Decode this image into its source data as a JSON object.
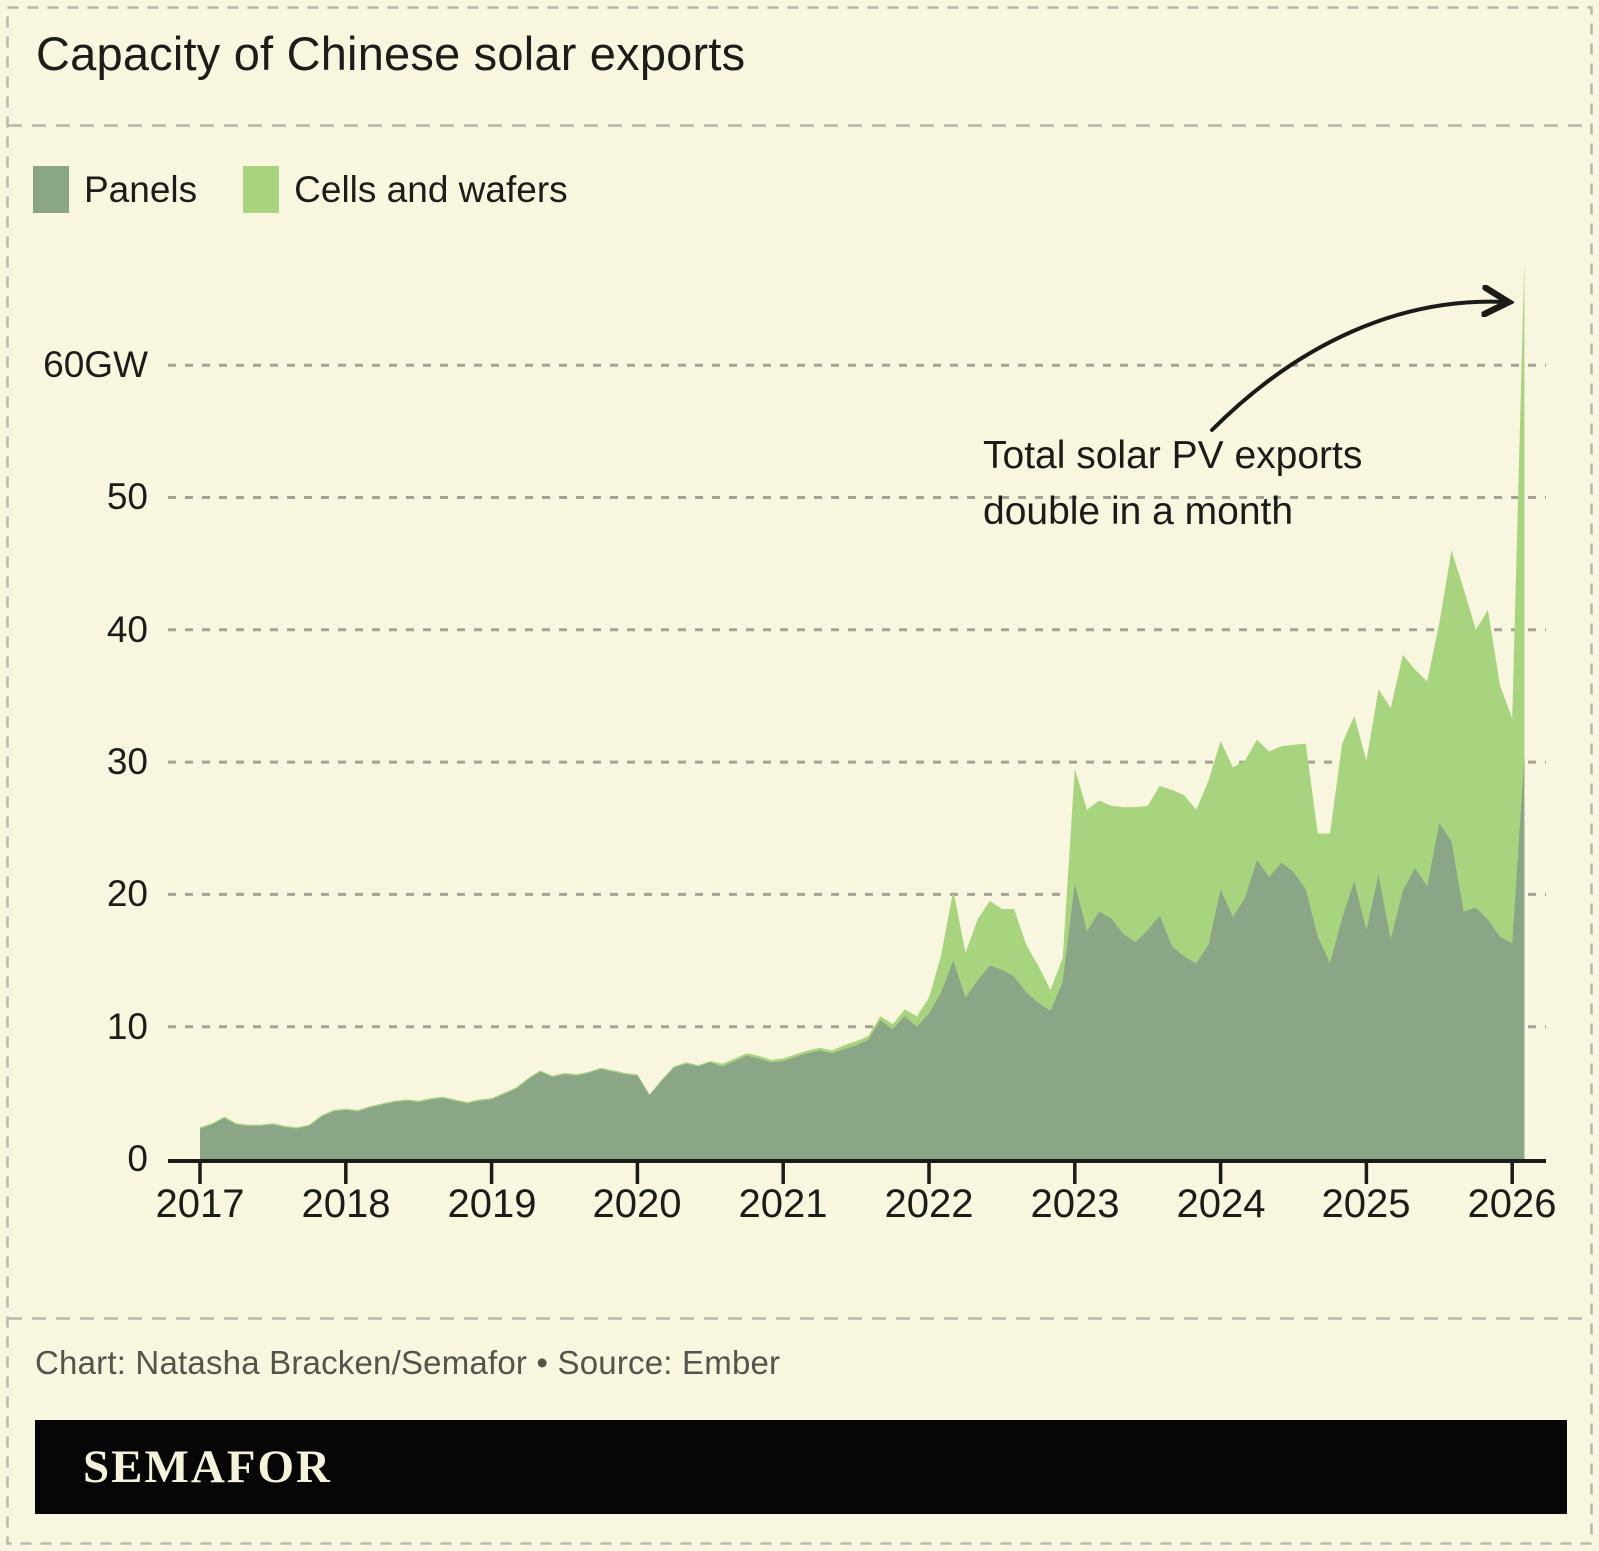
{
  "title": "Capacity of Chinese solar exports",
  "legend": [
    {
      "label": "Panels",
      "color": "#8ba687"
    },
    {
      "label": "Cells and wafers",
      "color": "#a8d47f"
    }
  ],
  "annotation": {
    "line1": "Total solar PV exports",
    "line2": "double in a month"
  },
  "credit": "Chart: Natasha Bracken/Semafor • Source: Ember",
  "logo": "SEMAFOR",
  "colors": {
    "background": "#f9f6e0",
    "panels": "#8ba687",
    "cells_and_wafers": "#a8d47f",
    "grid": "#a3a295",
    "separator": "#b8b6a9",
    "border_dash": "#b8b6a9",
    "axis": "#1b1b18",
    "arrow": "#1b1b18",
    "credit_text": "#55544b",
    "brand_bar": "#060606",
    "brand_text": "#f5f1da"
  },
  "chart_data": {
    "type": "area",
    "stacked": true,
    "unit": "GW",
    "frequency": "monthly",
    "x_start": "2017-01",
    "x_end": "2026-02",
    "ylim": [
      0,
      70
    ],
    "grid": true,
    "legend_position": "top-left",
    "x_tick_labels": [
      "2017",
      "2018",
      "2019",
      "2020",
      "2021",
      "2022",
      "2023",
      "2024",
      "2025",
      "2026"
    ],
    "y_tick_labels": [
      "60GW",
      "50",
      "40",
      "30",
      "20",
      "10",
      "0"
    ],
    "y_tick_values": [
      60,
      50,
      40,
      30,
      20,
      10,
      0
    ],
    "annotation": "Total solar PV exports double in a month",
    "series": [
      {
        "name": "Panels",
        "color": "#8ba687",
        "values": [
          2.3,
          2.6,
          3.1,
          2.6,
          2.5,
          2.5,
          2.6,
          2.4,
          2.3,
          2.5,
          3.2,
          3.6,
          3.7,
          3.6,
          3.9,
          4.1,
          4.3,
          4.4,
          4.3,
          4.5,
          4.6,
          4.4,
          4.2,
          4.4,
          4.5,
          4.9,
          5.3,
          6.0,
          6.6,
          6.2,
          6.4,
          6.3,
          6.5,
          6.8,
          6.6,
          6.4,
          6.3,
          4.8,
          5.9,
          6.9,
          7.2,
          7.0,
          7.3,
          7.0,
          7.4,
          7.8,
          7.6,
          7.3,
          7.4,
          7.7,
          8.0,
          8.2,
          8.0,
          8.3,
          8.6,
          9.0,
          10.5,
          9.8,
          10.8,
          10.0,
          11.0,
          12.6,
          15.0,
          12.2,
          13.5,
          14.6,
          14.3,
          13.8,
          12.6,
          11.8,
          11.2,
          13.4,
          20.8,
          17.2,
          18.7,
          18.2,
          17.0,
          16.4,
          17.3,
          18.4,
          16.1,
          15.3,
          14.8,
          16.2,
          20.4,
          18.3,
          19.7,
          22.6,
          21.3,
          22.4,
          21.7,
          20.4,
          16.8,
          14.8,
          18.2,
          21.0,
          17.3,
          21.5,
          16.6,
          20.3,
          22.0,
          20.6,
          25.4,
          24.0,
          18.7,
          19.0,
          18.1,
          16.8,
          16.3,
          30.5
        ]
      },
      {
        "name": "Cells and wafers",
        "color": "#a8d47f",
        "values": [
          0.1,
          0.1,
          0.1,
          0.1,
          0.1,
          0.1,
          0.1,
          0.1,
          0.1,
          0.1,
          0.1,
          0.1,
          0.1,
          0.1,
          0.1,
          0.1,
          0.1,
          0.1,
          0.1,
          0.1,
          0.1,
          0.1,
          0.1,
          0.1,
          0.1,
          0.1,
          0.1,
          0.1,
          0.1,
          0.1,
          0.1,
          0.1,
          0.1,
          0.1,
          0.1,
          0.1,
          0.1,
          0.1,
          0.1,
          0.1,
          0.1,
          0.1,
          0.1,
          0.2,
          0.2,
          0.2,
          0.2,
          0.2,
          0.2,
          0.2,
          0.2,
          0.2,
          0.2,
          0.3,
          0.3,
          0.3,
          0.3,
          0.4,
          0.5,
          0.8,
          1.2,
          2.8,
          5.3,
          3.4,
          4.6,
          4.9,
          4.6,
          5.1,
          3.6,
          2.8,
          1.6,
          1.8,
          8.7,
          9.2,
          8.4,
          8.5,
          9.6,
          10.2,
          9.4,
          9.8,
          11.8,
          12.2,
          11.6,
          12.4,
          11.2,
          11.3,
          10.4,
          9.1,
          9.5,
          8.8,
          9.6,
          11.0,
          7.8,
          9.8,
          13.2,
          12.5,
          12.8,
          14.0,
          17.5,
          17.8,
          15.0,
          15.5,
          15.1,
          22.0,
          24.4,
          21.0,
          23.4,
          19.0,
          17.0,
          37.5
        ]
      }
    ]
  }
}
